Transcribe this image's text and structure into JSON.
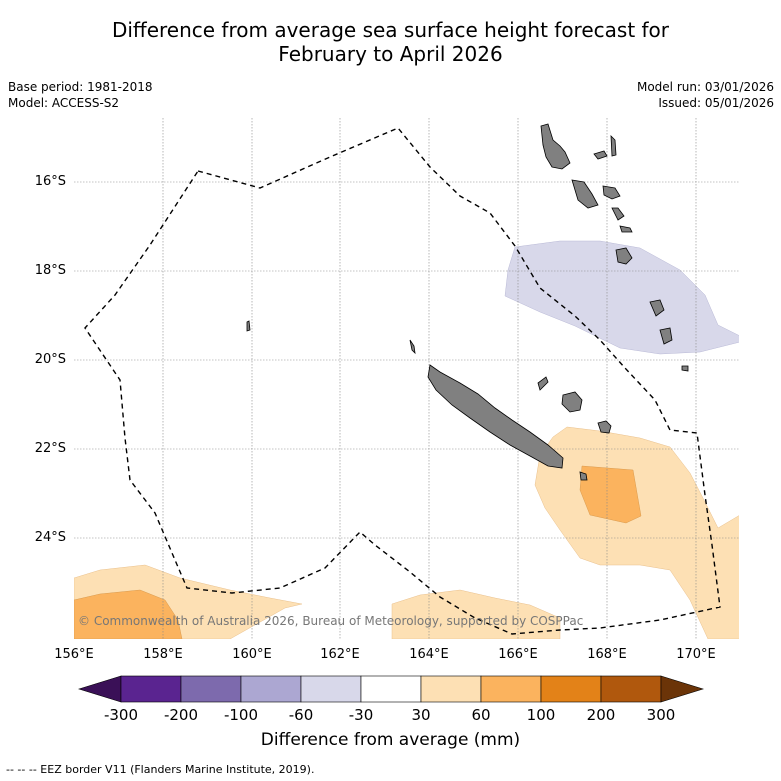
{
  "title_line1": "Difference from average sea surface height forecast for",
  "title_line2": "February to April 2026",
  "base_period": "Base period: 1981-2018",
  "model": "Model: ACCESS-S2",
  "model_run": "Model run: 03/01/2026",
  "issued": "Issued: 05/01/2026",
  "copyright": "© Commonwealth of Australia 2026, Bureau of Meteorology, supported by COSPPac",
  "footer": "-- -- -- EEZ border V11 (Flanders Marine Institute, 2019).",
  "map": {
    "lon_range": [
      156,
      171
    ],
    "lat_range": [
      -26.2,
      -14.5
    ],
    "lat_ticks": [
      "16°S",
      "18°S",
      "20°S",
      "22°S",
      "24°S"
    ],
    "lon_ticks": [
      "156°E",
      "158°E",
      "160°E",
      "162°E",
      "164°E",
      "166°E",
      "168°E",
      "170°E"
    ]
  },
  "colorbar": {
    "title": "Difference from average (mm)",
    "ticks": [
      "-300",
      "-200",
      "-100",
      "-60",
      "-30",
      "30",
      "60",
      "100",
      "200",
      "300"
    ],
    "colors": [
      "#3a1057",
      "#5a2490",
      "#7d6aad",
      "#aca7d2",
      "#d8d8ea",
      "#ffffff",
      "#fde0b4",
      "#fbb35e",
      "#e38218",
      "#b0580d",
      "#6b3408"
    ]
  },
  "land_color": "#808080",
  "chart_data": {
    "type": "map",
    "title": "Difference from average sea surface height forecast for February to April 2026",
    "units": "mm",
    "features": [
      {
        "name": "negative anomaly (-60 to -30)",
        "region": "north of New Caledonia near Vanuatu, ~165.8E-171E, 18S-19.8S"
      },
      {
        "name": "positive anomaly (30 to 60)",
        "region": "southeast of New Caledonia, ~166.5E-171E, 21.8S-26S"
      },
      {
        "name": "positive anomaly (60 to 100)",
        "region": "~167.5E-168.7E, 22.3S-23.8S"
      },
      {
        "name": "positive anomaly (30 to 100)",
        "region": "southwest corner, ~156E-161E, 24.6S-26S"
      }
    ]
  }
}
